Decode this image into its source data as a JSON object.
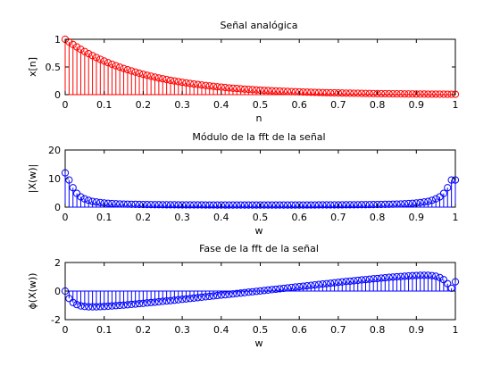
{
  "chart_data": [
    {
      "type": "stem",
      "title": "Señal analógica",
      "xlabel": "n",
      "ylabel": "x[n]",
      "xlim": [
        0,
        1
      ],
      "ylim": [
        0,
        1
      ],
      "xticks": [
        "0",
        "0.1",
        "0.2",
        "0.3",
        "0.4",
        "0.5",
        "0.6",
        "0.7",
        "0.8",
        "0.9",
        "1"
      ],
      "yticks": [
        "0",
        "0.5",
        "1"
      ],
      "color": "#ff0000",
      "x_start": 0,
      "x_step": 0.01,
      "count": 101,
      "values": [
        1.0,
        0.951,
        0.905,
        0.861,
        0.819,
        0.779,
        0.741,
        0.705,
        0.67,
        0.638,
        0.607,
        0.577,
        0.549,
        0.522,
        0.497,
        0.472,
        0.449,
        0.427,
        0.407,
        0.387,
        0.368,
        0.35,
        0.333,
        0.317,
        0.301,
        0.287,
        0.273,
        0.259,
        0.247,
        0.235,
        0.223,
        0.212,
        0.202,
        0.192,
        0.183,
        0.174,
        0.165,
        0.157,
        0.15,
        0.142,
        0.135,
        0.129,
        0.122,
        0.116,
        0.111,
        0.105,
        0.1,
        0.095,
        0.091,
        0.086,
        0.082,
        0.078,
        0.074,
        0.071,
        0.067,
        0.064,
        0.061,
        0.058,
        0.055,
        0.052,
        0.05,
        0.047,
        0.045,
        0.043,
        0.041,
        0.039,
        0.037,
        0.035,
        0.033,
        0.032,
        0.03,
        0.029,
        0.027,
        0.026,
        0.025,
        0.024,
        0.022,
        0.021,
        0.02,
        0.019,
        0.018,
        0.017,
        0.017,
        0.016,
        0.015,
        0.014,
        0.014,
        0.013,
        0.012,
        0.012,
        0.011,
        0.01,
        0.01,
        0.009,
        0.009,
        0.009,
        0.008,
        0.008,
        0.007,
        0.007,
        0.007
      ]
    },
    {
      "type": "stem",
      "title": "Módulo de la fft de la señal",
      "xlabel": "w",
      "ylabel": "|X(w)|",
      "xlim": [
        0,
        1
      ],
      "ylim": [
        0,
        20
      ],
      "xticks": [
        "0",
        "0.1",
        "0.2",
        "0.3",
        "0.4",
        "0.5",
        "0.6",
        "0.7",
        "0.8",
        "0.9",
        "1"
      ],
      "yticks": [
        "0",
        "10",
        "20"
      ],
      "color": "#0000ff",
      "x_start": 0,
      "x_step": 0.01,
      "count": 101,
      "values": [
        12.0,
        9.5,
        6.8,
        4.8,
        3.6,
        2.9,
        2.4,
        2.0,
        1.8,
        1.6,
        1.45,
        1.35,
        1.25,
        1.18,
        1.12,
        1.07,
        1.03,
        1.0,
        0.97,
        0.94,
        0.92,
        0.9,
        0.88,
        0.86,
        0.85,
        0.84,
        0.83,
        0.82,
        0.81,
        0.8,
        0.79,
        0.79,
        0.78,
        0.78,
        0.77,
        0.77,
        0.76,
        0.76,
        0.76,
        0.75,
        0.75,
        0.75,
        0.75,
        0.74,
        0.74,
        0.74,
        0.74,
        0.74,
        0.74,
        0.74,
        0.74,
        0.74,
        0.74,
        0.74,
        0.74,
        0.74,
        0.74,
        0.74,
        0.75,
        0.75,
        0.75,
        0.75,
        0.76,
        0.76,
        0.76,
        0.77,
        0.77,
        0.78,
        0.78,
        0.79,
        0.79,
        0.8,
        0.81,
        0.82,
        0.83,
        0.84,
        0.85,
        0.86,
        0.88,
        0.9,
        0.92,
        0.94,
        0.97,
        1.0,
        1.03,
        1.07,
        1.12,
        1.18,
        1.25,
        1.35,
        1.45,
        1.6,
        1.8,
        2.0,
        2.4,
        2.9,
        3.6,
        4.8,
        6.8,
        9.5,
        9.5
      ]
    },
    {
      "type": "stem",
      "title": "Fase de la fft de la señal",
      "xlabel": "w",
      "ylabel": "ϕ(X(w))",
      "xlim": [
        0,
        1
      ],
      "ylim": [
        -2,
        2
      ],
      "xticks": [
        "0",
        "0.1",
        "0.2",
        "0.3",
        "0.4",
        "0.5",
        "0.6",
        "0.7",
        "0.8",
        "0.9",
        "1"
      ],
      "yticks": [
        "-2",
        "0",
        "2"
      ],
      "color": "#0000ff",
      "x_start": 0,
      "x_step": 0.01,
      "count": 101,
      "values": [
        0.0,
        -0.52,
        -0.8,
        -0.95,
        -1.04,
        -1.08,
        -1.1,
        -1.1,
        -1.1,
        -1.09,
        -1.08,
        -1.06,
        -1.04,
        -1.02,
        -1.0,
        -0.98,
        -0.96,
        -0.93,
        -0.91,
        -0.88,
        -0.86,
        -0.83,
        -0.8,
        -0.78,
        -0.75,
        -0.72,
        -0.69,
        -0.67,
        -0.64,
        -0.61,
        -0.58,
        -0.55,
        -0.52,
        -0.49,
        -0.46,
        -0.43,
        -0.4,
        -0.37,
        -0.34,
        -0.31,
        -0.28,
        -0.26,
        -0.23,
        -0.2,
        -0.17,
        -0.14,
        -0.11,
        -0.08,
        -0.05,
        -0.02,
        0.01,
        0.04,
        0.07,
        0.1,
        0.13,
        0.16,
        0.19,
        0.22,
        0.25,
        0.28,
        0.31,
        0.34,
        0.37,
        0.4,
        0.43,
        0.46,
        0.49,
        0.52,
        0.55,
        0.58,
        0.61,
        0.64,
        0.67,
        0.69,
        0.72,
        0.75,
        0.78,
        0.8,
        0.83,
        0.86,
        0.88,
        0.91,
        0.93,
        0.96,
        0.98,
        1.0,
        1.02,
        1.04,
        1.06,
        1.08,
        1.09,
        1.1,
        1.1,
        1.1,
        1.08,
        1.04,
        0.95,
        0.8,
        0.52,
        0.2,
        0.65
      ]
    }
  ]
}
